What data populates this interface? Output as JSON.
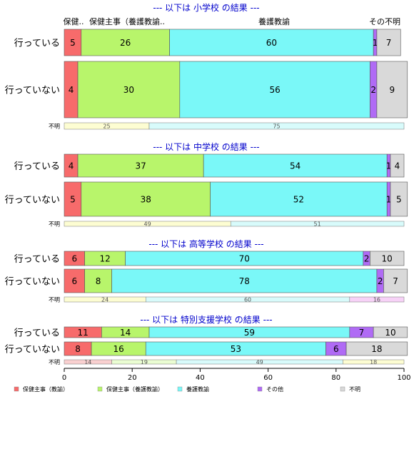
{
  "colors": {
    "保健主事（教諭）": "#f76b6b",
    "保健主事（養護教諭）": "#b8f56b",
    "養護教諭": "#7af8f8",
    "その他": "#b06bf5",
    "不明": "#d9d9d9",
    "na_a": "#fdfdd2",
    "na_b": "#d8fbfb",
    "na_c": "#f7d2f7",
    "na_d": "#f9d0d0",
    "na_e": "#eafdd2",
    "title": "#0000cc"
  },
  "chart_data": {
    "type": "bar",
    "orientation": "horizontal",
    "stacked": true,
    "xlim": [
      0,
      100
    ],
    "xticks": [
      "0",
      "20",
      "40",
      "60",
      "80",
      "100"
    ],
    "header_labels": [
      "保健..",
      "保健主事（養護教諭..",
      "養護教諭",
      "その不明"
    ],
    "legend": [
      "保健主事（教諭）",
      "保健主事（養護教諭）",
      "養護教諭",
      "その他",
      "不明"
    ],
    "sections": [
      {
        "title": "--- 以下は 小学校 の結果 ---",
        "rows": [
          {
            "label": "行っている",
            "values": [
              5,
              26,
              60,
              1,
              7
            ]
          },
          {
            "label": "行っていない",
            "values": [
              4,
              30,
              56,
              2,
              9
            ]
          }
        ],
        "na": {
          "label": "不明",
          "values": [
            25,
            75
          ],
          "color_keys": [
            "na_a",
            "na_b"
          ]
        }
      },
      {
        "title": "--- 以下は 中学校 の結果 ---",
        "rows": [
          {
            "label": "行っている",
            "values": [
              4,
              37,
              54,
              1,
              4
            ]
          },
          {
            "label": "行っていない",
            "values": [
              5,
              38,
              52,
              1,
              5
            ]
          }
        ],
        "na": {
          "label": "不明",
          "values": [
            49,
            51
          ],
          "color_keys": [
            "na_a",
            "na_b"
          ]
        }
      },
      {
        "title": "--- 以下は 高等学校 の結果 ---",
        "rows": [
          {
            "label": "行っている",
            "values": [
              6,
              12,
              70,
              2,
              10
            ]
          },
          {
            "label": "行っていない",
            "values": [
              6,
              8,
              78,
              2,
              7
            ]
          }
        ],
        "na": {
          "label": "不明",
          "values": [
            24,
            60,
            16
          ],
          "color_keys": [
            "na_a",
            "na_b",
            "na_c"
          ]
        }
      },
      {
        "title": "--- 以下は 特別支援学校 の結果 ---",
        "rows": [
          {
            "label": "行っている",
            "values": [
              11,
              14,
              59,
              7,
              10
            ]
          },
          {
            "label": "行っていない",
            "values": [
              8,
              16,
              53,
              6,
              18
            ]
          }
        ],
        "na": {
          "label": "不明",
          "values": [
            14,
            19,
            49,
            18
          ],
          "color_keys": [
            "na_d",
            "na_e",
            "na_b",
            "na_a"
          ]
        }
      }
    ]
  }
}
